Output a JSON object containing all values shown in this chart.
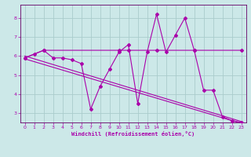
{
  "title": "",
  "xlabel": "Windchill (Refroidissement éolien,°C)",
  "bg_color": "#cce8e8",
  "grid_color": "#aacccc",
  "line_color": "#aa00aa",
  "spine_color": "#660066",
  "xlim": [
    -0.5,
    23.5
  ],
  "ylim": [
    2.5,
    8.7
  ],
  "xticks": [
    0,
    1,
    2,
    3,
    4,
    5,
    6,
    7,
    8,
    9,
    10,
    11,
    12,
    13,
    14,
    15,
    16,
    17,
    18,
    19,
    20,
    21,
    22,
    23
  ],
  "yticks": [
    3,
    4,
    5,
    6,
    7,
    8
  ],
  "series1_x": [
    0,
    1,
    2,
    3,
    4,
    5,
    6,
    7,
    8,
    9,
    10,
    11,
    12,
    13,
    14,
    15,
    16,
    17,
    18,
    19,
    20,
    21,
    22,
    23
  ],
  "series1_y": [
    5.9,
    6.1,
    6.3,
    5.9,
    5.9,
    5.8,
    5.6,
    3.2,
    4.4,
    5.3,
    6.2,
    6.6,
    3.5,
    6.2,
    8.2,
    6.2,
    7.1,
    8.0,
    6.3,
    4.2,
    4.2,
    2.8,
    2.6,
    2.5
  ],
  "series2_x": [
    0,
    2,
    10,
    11,
    14,
    18,
    23
  ],
  "series2_y": [
    5.9,
    6.3,
    6.3,
    6.3,
    6.3,
    6.3,
    6.3
  ],
  "series3_x": [
    0,
    23
  ],
  "series3_y": [
    6.0,
    2.55
  ],
  "series4_x": [
    0,
    23
  ],
  "series4_y": [
    5.85,
    2.45
  ]
}
